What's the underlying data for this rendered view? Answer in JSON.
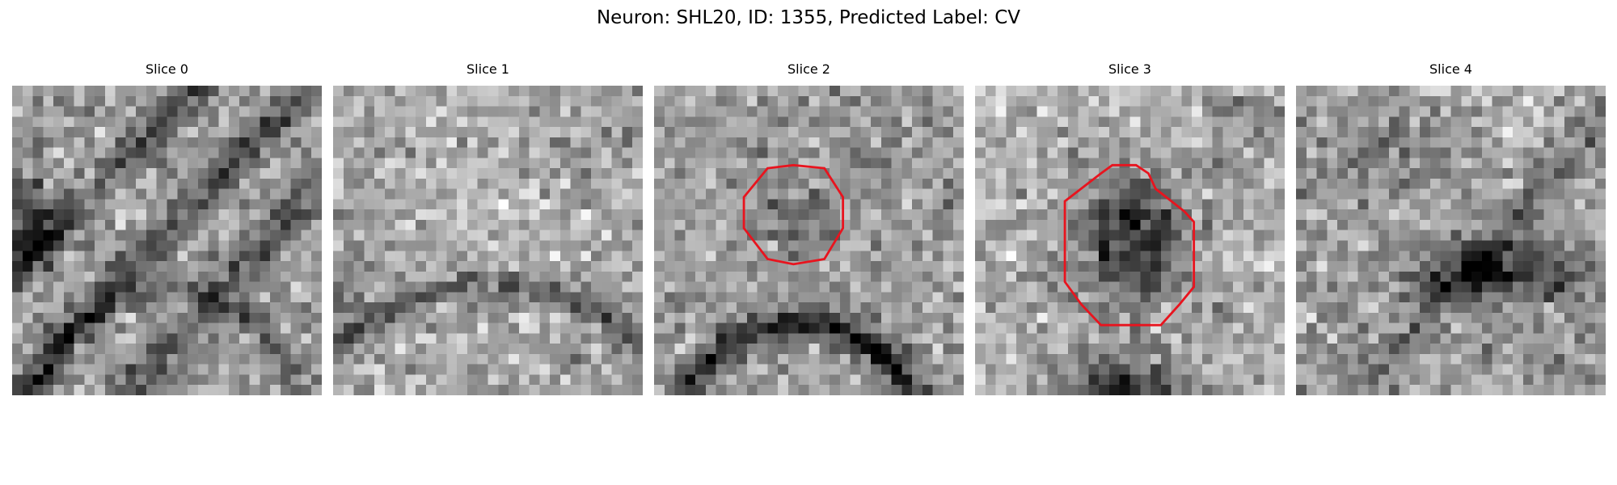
{
  "figure": {
    "title": "Neuron: SHL20, ID: 1355, Predicted Label: CV",
    "outline_color": "#e8141e",
    "colormap": "gray"
  },
  "slices": [
    {
      "title": "Slice 0",
      "has_outline": false
    },
    {
      "title": "Slice 1",
      "has_outline": false
    },
    {
      "title": "Slice 2",
      "has_outline": true
    },
    {
      "title": "Slice 3",
      "has_outline": true
    },
    {
      "title": "Slice 4",
      "has_outline": false
    }
  ]
}
